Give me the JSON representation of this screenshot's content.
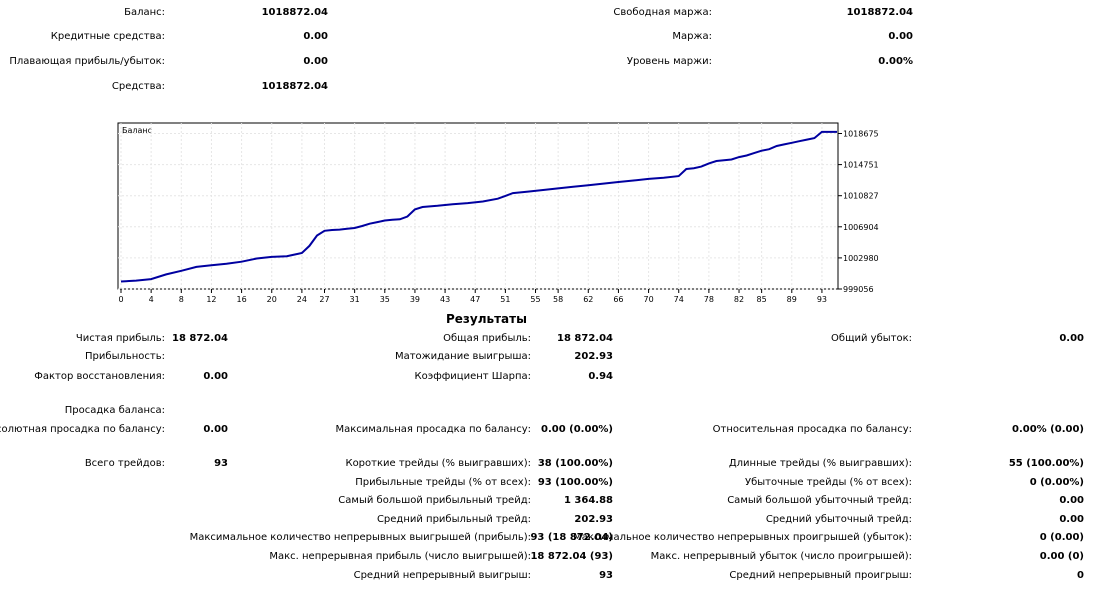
{
  "account": {
    "balance": {
      "label": "Баланс:",
      "value": "1018872.04"
    },
    "credit": {
      "label": "Кредитные средства:",
      "value": "0.00"
    },
    "floating": {
      "label": "Плавающая прибыль/убыток:",
      "value": "0.00"
    },
    "equity": {
      "label": "Средства:",
      "value": "1018872.04"
    },
    "free_margin": {
      "label": "Свободная маржа:",
      "value": "1018872.04"
    },
    "margin": {
      "label": "Маржа:",
      "value": "0.00"
    },
    "margin_level": {
      "label": "Уровень маржи:",
      "value": "0.00%"
    }
  },
  "chart_data": {
    "type": "line",
    "title": "Баланс",
    "x": [
      0,
      2,
      4,
      6,
      8,
      10,
      12,
      14,
      16,
      18,
      20,
      22,
      24,
      25,
      26,
      27,
      28,
      29,
      30,
      31,
      32,
      33,
      34,
      35,
      36,
      37,
      38,
      39,
      40,
      42,
      44,
      46,
      48,
      50,
      51,
      52,
      54,
      56,
      58,
      60,
      62,
      64,
      66,
      68,
      70,
      72,
      74,
      75,
      76,
      77,
      78,
      79,
      80,
      81,
      82,
      83,
      84,
      85,
      86,
      87,
      88,
      89,
      90,
      91,
      92,
      93
    ],
    "values": [
      1000000,
      1000120,
      1000300,
      1000900,
      1001350,
      1001850,
      1002050,
      1002250,
      1002500,
      1002900,
      1003100,
      1003200,
      1003600,
      1004500,
      1005800,
      1006400,
      1006500,
      1006550,
      1006650,
      1006750,
      1007000,
      1007300,
      1007500,
      1007700,
      1007800,
      1007850,
      1008200,
      1009100,
      1009400,
      1009550,
      1009750,
      1009900,
      1010100,
      1010450,
      1010800,
      1011150,
      1011350,
      1011550,
      1011750,
      1011950,
      1012150,
      1012350,
      1012550,
      1012750,
      1012950,
      1013100,
      1013300,
      1014200,
      1014300,
      1014500,
      1014900,
      1015200,
      1015300,
      1015400,
      1015700,
      1015900,
      1016200,
      1016500,
      1016700,
      1017100,
      1017300,
      1017500,
      1017700,
      1017900,
      1018100,
      1018872.04
    ],
    "x_ticks": [
      "0",
      "4",
      "8",
      "12",
      "16",
      "20",
      "24",
      "27",
      "31",
      "35",
      "39",
      "43",
      "47",
      "51",
      "55",
      "58",
      "62",
      "66",
      "70",
      "74",
      "78",
      "82",
      "85",
      "89",
      "93"
    ],
    "y_ticks": [
      "1018675",
      "1014751",
      "1010827",
      "1006904",
      "1002980",
      "999056"
    ],
    "ylim": [
      999056,
      1020000
    ],
    "line_color": "#0000a0"
  },
  "results": {
    "title": "Результаты",
    "net_profit": {
      "label": "Чистая прибыль:",
      "value": "18 872.04"
    },
    "gross_profit": {
      "label": "Общая прибыль:",
      "value": "18 872.04"
    },
    "gross_loss": {
      "label": "Общий убыток:",
      "value": "0.00"
    },
    "profitability": {
      "label": "Прибыльность:",
      "value": ""
    },
    "expected_payoff": {
      "label": "Матожидание выигрыша:",
      "value": "202.93"
    },
    "recovery_factor": {
      "label": "Фактор восстановления:",
      "value": "0.00"
    },
    "sharpe": {
      "label": "Коэффициент Шарпа:",
      "value": "0.94"
    },
    "drawdown_title": {
      "label": "Просадка баланса:"
    },
    "abs_drawdown": {
      "label": "Абсолютная просадка по балансу:",
      "value": "0.00"
    },
    "max_drawdown": {
      "label": "Максимальная просадка по балансу:",
      "value": "0.00 (0.00%)"
    },
    "rel_drawdown": {
      "label": "Относительная просадка по балансу:",
      "value": "0.00% (0.00)"
    },
    "total_trades": {
      "label": "Всего трейдов:",
      "value": "93"
    },
    "short_trades": {
      "label": "Короткие трейды (% выигравших):",
      "value": "38 (100.00%)"
    },
    "long_trades": {
      "label": "Длинные трейды (% выигравших):",
      "value": "55 (100.00%)"
    },
    "profit_trades": {
      "label": "Прибыльные трейды (% от всех):",
      "value": "93 (100.00%)"
    },
    "loss_trades": {
      "label": "Убыточные трейды (% от всех):",
      "value": "0 (0.00%)"
    },
    "largest_profit": {
      "label": "Самый большой прибыльный трейд:",
      "value": "1 364.88"
    },
    "largest_loss": {
      "label": "Самый большой убыточный трейд:",
      "value": "0.00"
    },
    "avg_profit": {
      "label": "Средний прибыльный трейд:",
      "value": "202.93"
    },
    "avg_loss": {
      "label": "Средний убыточный трейд:",
      "value": "0.00"
    },
    "max_cons_wins": {
      "label": "Максимальное количество непрерывных выигрышей (прибыль):",
      "value": "93 (18 872.04)"
    },
    "max_cons_losses": {
      "label": "Максимальное количество непрерывных проигрышей (убыток):",
      "value": "0 (0.00)"
    },
    "max_cons_profit": {
      "label": "Макс. непрерывная прибыль (число выигрышей):",
      "value": "18 872.04 (93)"
    },
    "max_cons_loss": {
      "label": "Макс. непрерывный убыток (число проигрышей):",
      "value": "0.00 (0)"
    },
    "avg_cons_wins": {
      "label": "Средний непрерывный выигрыш:",
      "value": "93"
    },
    "avg_cons_losses": {
      "label": "Средний непрерывный проигрыш:",
      "value": "0"
    }
  }
}
